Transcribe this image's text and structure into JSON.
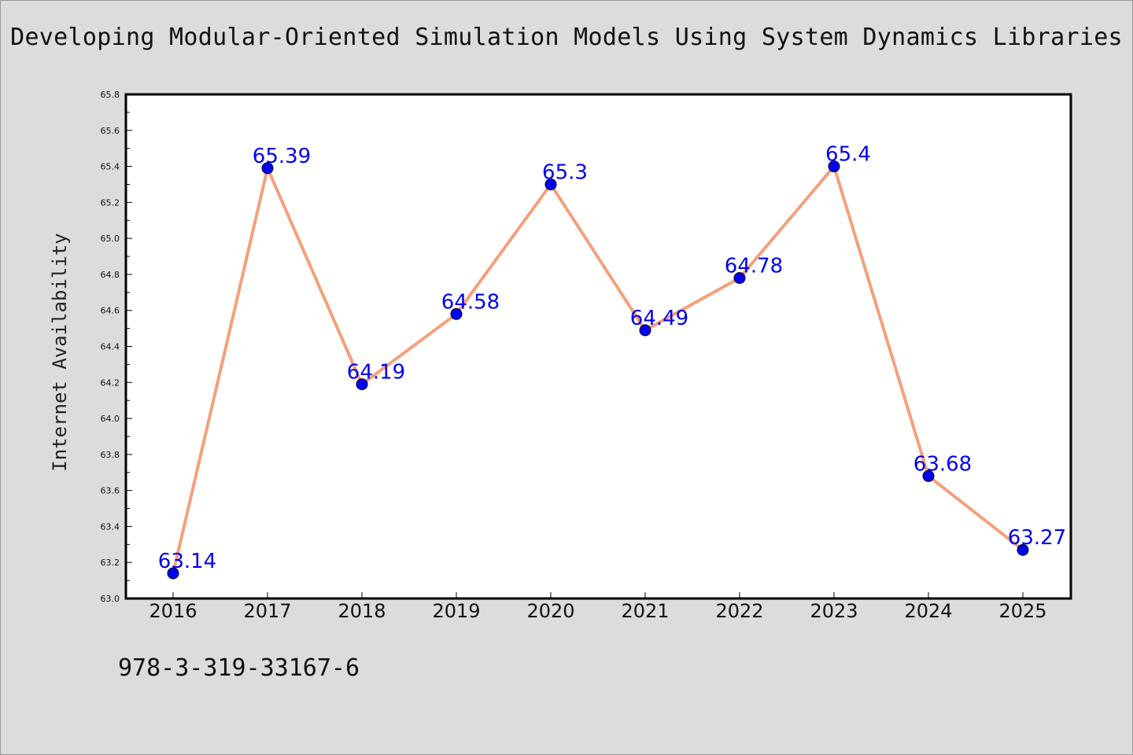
{
  "title": "Developing Modular-Oriented Simulation Models Using System Dynamics Libraries",
  "isbn": "978-3-319-33167-6",
  "colors": {
    "background": "#dcdcdc",
    "plot_background": "#ffffff",
    "line": "#f4a07c",
    "marker": "#0000ee",
    "data_label": "#0000ee"
  },
  "chart_data": {
    "type": "line",
    "title": "Developing Modular-Oriented Simulation Models Using System Dynamics Libraries",
    "xlabel": "",
    "ylabel": "Internet Availability",
    "categories": [
      "2016",
      "2017",
      "2018",
      "2019",
      "2020",
      "2021",
      "2022",
      "2023",
      "2024",
      "2025"
    ],
    "series": [
      {
        "values": [
          63.14,
          65.39,
          64.19,
          64.58,
          65.3,
          64.49,
          64.78,
          65.4,
          63.68,
          63.27
        ],
        "labels": [
          "63.14",
          "65.39",
          "64.19",
          "64.58",
          "65.3",
          "64.49",
          "64.78",
          "65.4",
          "63.68",
          "63.27"
        ]
      }
    ],
    "ylim": [
      63.0,
      65.8
    ],
    "yticks": [
      "63.0",
      "63.2",
      "63.4",
      "63.6",
      "63.8",
      "64.0",
      "64.2",
      "64.4",
      "64.6",
      "64.8",
      "65.0",
      "65.2",
      "65.4",
      "65.6",
      "65.8"
    ],
    "grid": false,
    "legend": "none"
  }
}
